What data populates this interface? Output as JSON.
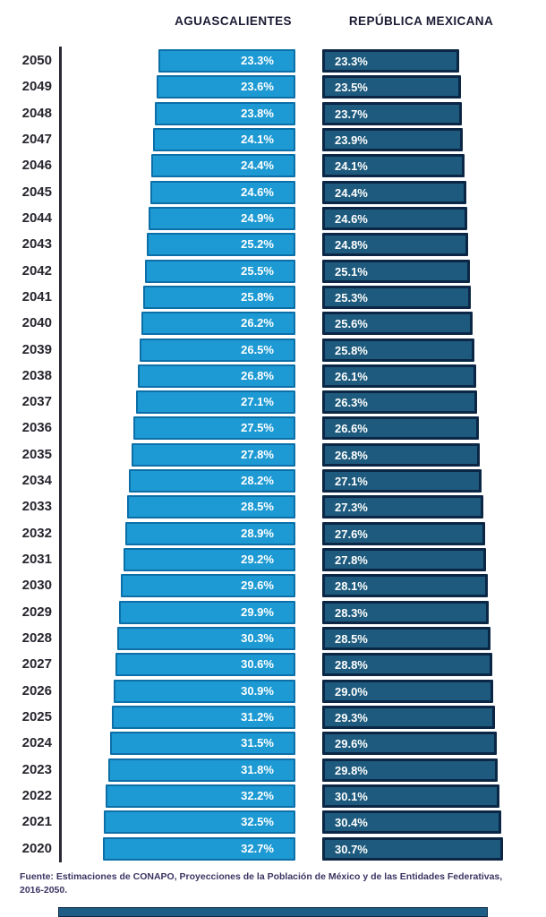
{
  "header": {
    "col1": "AGUASCALIENTES",
    "col2": "REPÚBLICA MEXICANA"
  },
  "chart_data": {
    "type": "bar",
    "orientation": "horizontal",
    "title": "",
    "unit": "%",
    "labels_on_bars": true,
    "value_range": [
      0,
      33
    ],
    "categories": [
      "2050",
      "2049",
      "2048",
      "2047",
      "2046",
      "2045",
      "2044",
      "2043",
      "2042",
      "2041",
      "2040",
      "2039",
      "2038",
      "2037",
      "2036",
      "2035",
      "2034",
      "2033",
      "2032",
      "2031",
      "2030",
      "2029",
      "2028",
      "2027",
      "2026",
      "2025",
      "2024",
      "2023",
      "2022",
      "2021",
      "2020"
    ],
    "series": [
      {
        "name": "AGUASCALIENTES",
        "fill_color": "#1d9ad3",
        "border_color": "#0c6fa8",
        "alignment": "right-edge-fixed",
        "values": [
          23.3,
          23.6,
          23.8,
          24.1,
          24.4,
          24.6,
          24.9,
          25.2,
          25.5,
          25.8,
          26.2,
          26.5,
          26.8,
          27.1,
          27.5,
          27.8,
          28.2,
          28.5,
          28.9,
          29.2,
          29.6,
          29.9,
          30.3,
          30.6,
          30.9,
          31.2,
          31.5,
          31.8,
          32.2,
          32.5,
          32.7
        ]
      },
      {
        "name": "REPÚBLICA MEXICANA",
        "fill_color": "#1d5a7d",
        "border_color": "#0b2745",
        "alignment": "left-edge-fixed",
        "values": [
          23.3,
          23.5,
          23.7,
          23.9,
          24.1,
          24.4,
          24.6,
          24.8,
          25.1,
          25.3,
          25.6,
          25.8,
          26.1,
          26.3,
          26.6,
          26.8,
          27.1,
          27.3,
          27.6,
          27.8,
          28.1,
          28.3,
          28.5,
          28.8,
          29.0,
          29.3,
          29.6,
          29.8,
          30.1,
          30.4,
          30.7
        ]
      }
    ]
  },
  "footer": {
    "source": "Fuente: Estimaciones de CONAPO, Proyecciones de la Población de México y de las Entidades Federativas, 2016-2050."
  },
  "colors": {
    "background": "#ffffff",
    "axis_line": "#2a2a36",
    "header_text": "#1b1b34",
    "year_text": "#26262e",
    "bar_value_text": "#ffffff",
    "source_text": "#3a3462",
    "bottom_strip": "#1e5d86"
  }
}
